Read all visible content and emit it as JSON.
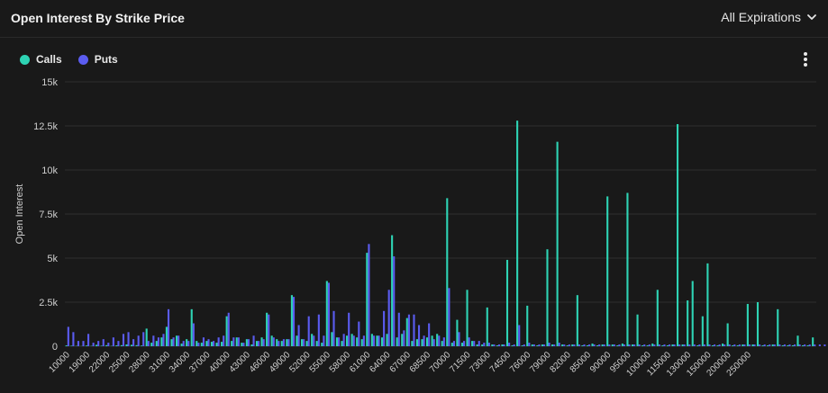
{
  "header": {
    "title": "Open Interest By Strike Price",
    "expirations_label": "All Expirations"
  },
  "legend": {
    "calls_label": "Calls",
    "puts_label": "Puts"
  },
  "colors": {
    "calls": "#2ed3b4",
    "puts": "#5b5cf0",
    "background": "#191919",
    "grid": "#2e2e2e"
  },
  "icons": {
    "dropdown": "chevron-down-icon",
    "menu": "kebab-menu-icon"
  },
  "chart_data": {
    "type": "bar",
    "title": "Open Interest By Strike Price",
    "ylabel": "Open Interest",
    "xlabel": "",
    "ylim": [
      0,
      15000
    ],
    "y_ticks": [
      {
        "value": 0,
        "label": "0"
      },
      {
        "value": 2500,
        "label": "2.5k"
      },
      {
        "value": 5000,
        "label": "5k"
      },
      {
        "value": 7500,
        "label": "7.5k"
      },
      {
        "value": 10000,
        "label": "10k"
      },
      {
        "value": 12500,
        "label": "12.5k"
      },
      {
        "value": 15000,
        "label": "15k"
      }
    ],
    "grid": true,
    "legend_position": "top-left",
    "x_tick_labels": [
      {
        "index": 0,
        "label": "10000"
      },
      {
        "index": 4,
        "label": "19000"
      },
      {
        "index": 8,
        "label": "22000"
      },
      {
        "index": 12,
        "label": "25000"
      },
      {
        "index": 16,
        "label": "28000"
      },
      {
        "index": 20,
        "label": "31000"
      },
      {
        "index": 24,
        "label": "34000"
      },
      {
        "index": 28,
        "label": "37000"
      },
      {
        "index": 32,
        "label": "40000"
      },
      {
        "index": 36,
        "label": "43000"
      },
      {
        "index": 40,
        "label": "46000"
      },
      {
        "index": 44,
        "label": "49000"
      },
      {
        "index": 48,
        "label": "52000"
      },
      {
        "index": 52,
        "label": "55000"
      },
      {
        "index": 56,
        "label": "58000"
      },
      {
        "index": 60,
        "label": "61000"
      },
      {
        "index": 64,
        "label": "64000"
      },
      {
        "index": 68,
        "label": "67000"
      },
      {
        "index": 72,
        "label": "68500"
      },
      {
        "index": 76,
        "label": "70000"
      },
      {
        "index": 80,
        "label": "71500"
      },
      {
        "index": 84,
        "label": "73000"
      },
      {
        "index": 88,
        "label": "74500"
      },
      {
        "index": 92,
        "label": "76000"
      },
      {
        "index": 96,
        "label": "79000"
      },
      {
        "index": 100,
        "label": "82000"
      },
      {
        "index": 104,
        "label": "85000"
      },
      {
        "index": 108,
        "label": "90000"
      },
      {
        "index": 112,
        "label": "95000"
      },
      {
        "index": 116,
        "label": "100000"
      },
      {
        "index": 120,
        "label": "115000"
      },
      {
        "index": 124,
        "label": "130000"
      },
      {
        "index": 128,
        "label": "150000"
      },
      {
        "index": 132,
        "label": "200000"
      },
      {
        "index": 136,
        "label": "250000"
      }
    ],
    "series": [
      {
        "name": "Calls",
        "values": [
          50,
          30,
          20,
          10,
          40,
          20,
          80,
          30,
          60,
          20,
          50,
          60,
          100,
          80,
          60,
          40,
          1000,
          200,
          300,
          500,
          1100,
          400,
          600,
          150,
          400,
          2100,
          300,
          200,
          300,
          250,
          200,
          250,
          1700,
          300,
          500,
          200,
          400,
          100,
          300,
          500,
          1900,
          600,
          400,
          300,
          400,
          2900,
          600,
          400,
          300,
          700,
          300,
          200,
          3700,
          800,
          500,
          300,
          600,
          700,
          500,
          400,
          5300,
          700,
          600,
          500,
          700,
          6300,
          500,
          700,
          1600,
          300,
          400,
          400,
          500,
          600,
          700,
          300,
          8400,
          200,
          1500,
          200,
          3200,
          300,
          100,
          100,
          2200,
          100,
          50,
          100,
          4900,
          50,
          12800,
          50,
          2300,
          100,
          50,
          100,
          5500,
          100,
          11600,
          100,
          50,
          100,
          2900,
          50,
          50,
          150,
          50,
          100,
          8500,
          100,
          50,
          150,
          8700,
          100,
          1800,
          50,
          50,
          150,
          3200,
          50,
          50,
          100,
          12600,
          100,
          2600,
          3700,
          50,
          1700,
          4700,
          50,
          50,
          150,
          1300,
          50,
          50,
          100,
          2400,
          100,
          2500,
          50,
          50,
          100,
          2100,
          50,
          50,
          50,
          600,
          50,
          50,
          500
        ]
      },
      {
        "name": "Puts",
        "values": [
          1100,
          800,
          300,
          300,
          700,
          200,
          300,
          400,
          200,
          500,
          300,
          700,
          800,
          400,
          600,
          800,
          300,
          600,
          500,
          700,
          2100,
          500,
          600,
          300,
          300,
          1300,
          200,
          500,
          400,
          300,
          500,
          600,
          1900,
          500,
          500,
          200,
          400,
          600,
          300,
          400,
          1800,
          500,
          300,
          400,
          400,
          2800,
          1200,
          400,
          1700,
          600,
          1800,
          600,
          3600,
          2000,
          500,
          700,
          1900,
          600,
          1400,
          600,
          5800,
          600,
          600,
          2000,
          3200,
          5100,
          1900,
          900,
          1800,
          1800,
          1200,
          600,
          1300,
          400,
          600,
          500,
          3300,
          300,
          800,
          300,
          500,
          300,
          300,
          200,
          200,
          100,
          100,
          100,
          200,
          100,
          1200,
          100,
          200,
          100,
          100,
          100,
          200,
          100,
          200,
          100,
          100,
          100,
          100,
          100,
          100,
          100,
          100,
          100,
          100,
          100,
          100,
          100,
          100,
          100,
          100,
          100,
          100,
          100,
          100,
          100,
          100,
          100,
          100,
          100,
          100,
          100,
          100,
          100,
          100,
          100,
          100,
          100,
          100,
          100,
          100,
          100,
          100,
          100,
          100,
          100,
          100,
          100,
          100,
          100,
          100,
          100,
          100,
          100,
          100,
          100,
          100,
          100
        ]
      }
    ]
  }
}
